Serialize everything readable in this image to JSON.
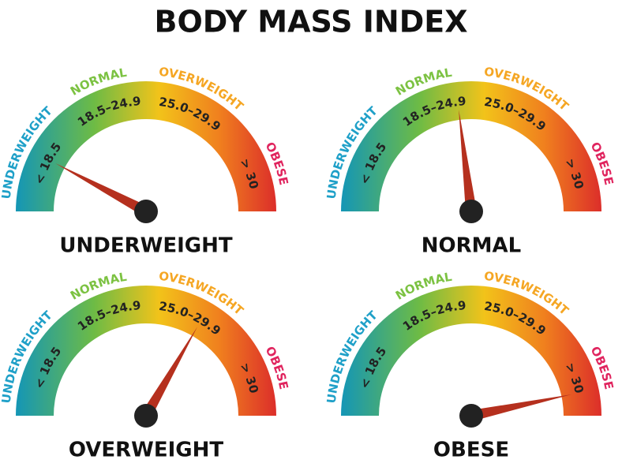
{
  "title": "BODY MASS INDEX",
  "scale": {
    "categories": [
      {
        "name": "UNDERWEIGHT",
        "range": "< 18.5"
      },
      {
        "name": "NORMAL",
        "range": "18.5–24.9"
      },
      {
        "name": "OVERWEIGHT",
        "range": "25.0–29.9"
      },
      {
        "name": "OBESE",
        "range": "> 30"
      }
    ]
  },
  "gauges": [
    {
      "label": "UNDERWEIGHT"
    },
    {
      "label": "NORMAL"
    },
    {
      "label": "OVERWEIGHT"
    },
    {
      "label": "OBESE"
    }
  ]
}
